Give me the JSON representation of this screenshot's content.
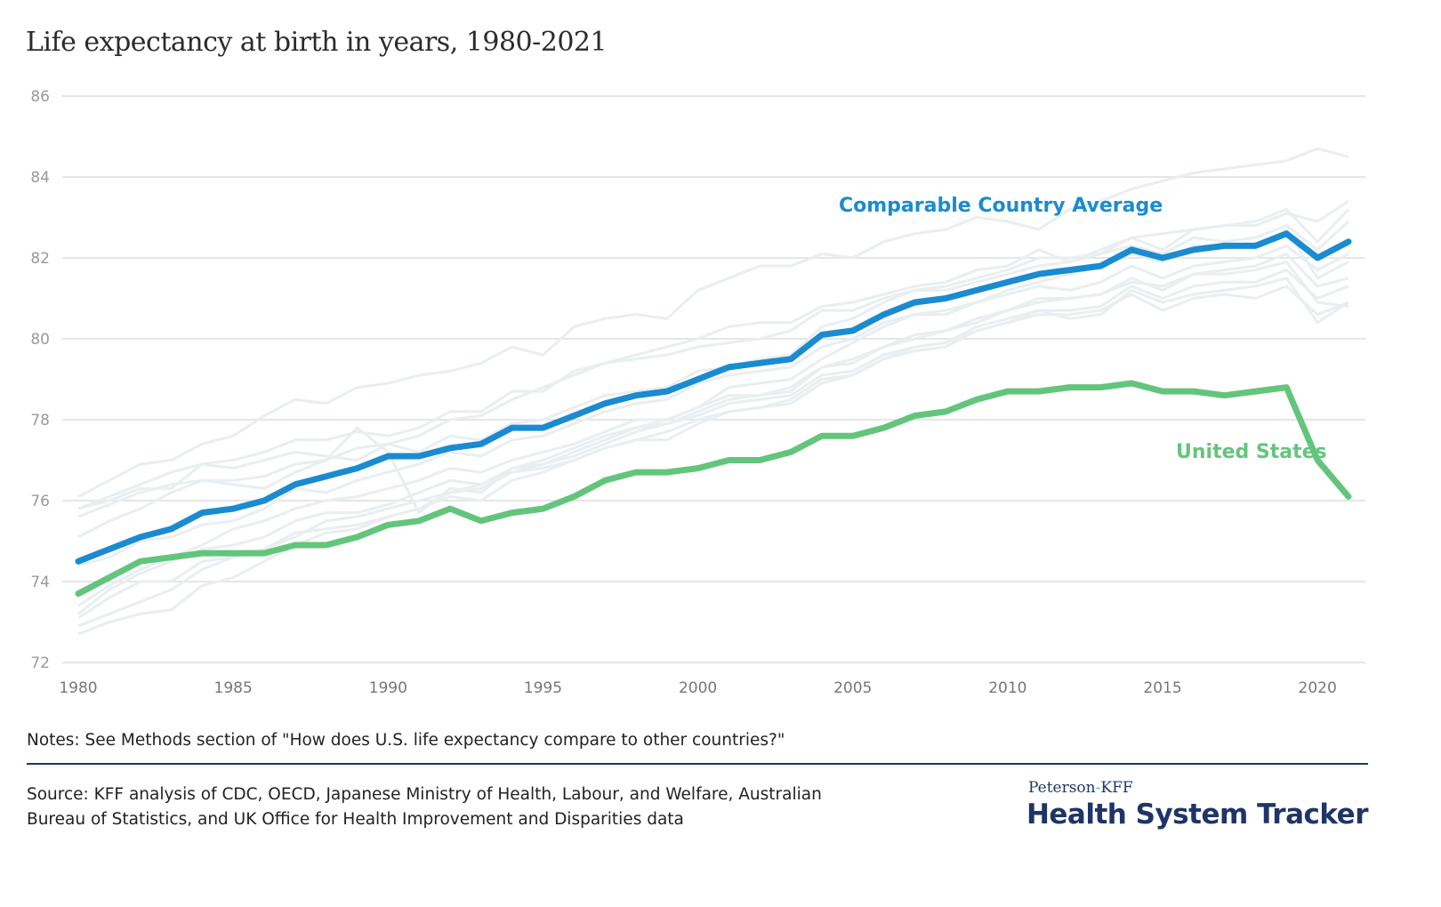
{
  "title": "Life expectancy at birth in years, 1980-2021",
  "notes": "Notes: See Methods section of \"How does U.S. life expectancy compare to other countries?\"",
  "source_line1": "Source: KFF analysis of CDC, OECD, Japanese Ministry of Health, Labour, and Welfare, Australian",
  "source_line2": "Bureau of Statistics, and UK Office for Health Improvement and Disparities data",
  "brand": {
    "top_left": "Peterson",
    "top_dash": "-",
    "top_right": "KFF",
    "main": "Health System Tracker"
  },
  "colors": {
    "comparable": "#1a8bd0",
    "us": "#63c57c",
    "background_lines": "#e9eef1",
    "grid": "#e6e6e6",
    "brand": "#1f3566"
  },
  "chart_data": {
    "type": "line",
    "title": "Life expectancy at birth in years, 1980-2021",
    "xlabel": "",
    "ylabel": "",
    "xlim": [
      1980,
      2021
    ],
    "ylim": [
      72,
      86
    ],
    "grid": true,
    "x_ticks": [
      1980,
      1985,
      1990,
      1995,
      2000,
      2005,
      2010,
      2015,
      2020
    ],
    "y_ticks": [
      72,
      74,
      76,
      78,
      80,
      82,
      84,
      86
    ],
    "x": [
      1980,
      1981,
      1982,
      1983,
      1984,
      1985,
      1986,
      1987,
      1988,
      1989,
      1990,
      1991,
      1992,
      1993,
      1994,
      1995,
      1996,
      1997,
      1998,
      1999,
      2000,
      2001,
      2002,
      2003,
      2004,
      2005,
      2006,
      2007,
      2008,
      2009,
      2010,
      2011,
      2012,
      2013,
      2014,
      2015,
      2016,
      2017,
      2018,
      2019,
      2020,
      2021
    ],
    "series": [
      {
        "name": "Comparable Country Average",
        "label": "Comparable Country Average",
        "values": [
          74.5,
          74.8,
          75.1,
          75.3,
          75.7,
          75.8,
          76.0,
          76.4,
          76.6,
          76.8,
          77.1,
          77.1,
          77.3,
          77.4,
          77.8,
          77.8,
          78.1,
          78.4,
          78.6,
          78.7,
          79.0,
          79.3,
          79.4,
          79.5,
          80.1,
          80.2,
          80.6,
          80.9,
          81.0,
          81.2,
          81.4,
          81.6,
          81.7,
          81.8,
          82.2,
          82.0,
          82.2,
          82.3,
          82.3,
          82.6,
          82.0,
          82.4
        ]
      },
      {
        "name": "United States",
        "label": "United States",
        "values": [
          73.7,
          74.1,
          74.5,
          74.6,
          74.7,
          74.7,
          74.7,
          74.9,
          74.9,
          75.1,
          75.4,
          75.5,
          75.8,
          75.5,
          75.7,
          75.8,
          76.1,
          76.5,
          76.7,
          76.7,
          76.8,
          77.0,
          77.0,
          77.2,
          77.6,
          77.6,
          77.8,
          78.1,
          78.2,
          78.5,
          78.7,
          78.7,
          78.8,
          78.8,
          78.9,
          78.7,
          78.7,
          78.6,
          78.7,
          78.8,
          77.0,
          76.1
        ]
      }
    ],
    "background_series": [
      {
        "name": "country-1",
        "values": [
          76.1,
          76.5,
          76.9,
          77.0,
          77.4,
          77.6,
          78.1,
          78.5,
          78.4,
          78.8,
          78.9,
          79.1,
          79.2,
          79.4,
          79.8,
          79.6,
          80.3,
          80.5,
          80.6,
          80.5,
          81.2,
          81.5,
          81.8,
          81.8,
          82.1,
          82.0,
          82.4,
          82.6,
          82.7,
          83.0,
          82.9,
          82.7,
          83.2,
          83.4,
          83.7,
          83.9,
          84.1,
          84.2,
          84.3,
          84.4,
          84.7,
          84.5
        ]
      },
      {
        "name": "country-2",
        "values": [
          75.8,
          76.1,
          76.4,
          76.7,
          76.9,
          77.0,
          77.2,
          77.5,
          77.5,
          77.7,
          77.6,
          77.8,
          78.2,
          78.2,
          78.7,
          78.7,
          79.2,
          79.4,
          79.5,
          79.6,
          79.8,
          79.9,
          80.0,
          80.2,
          80.7,
          80.7,
          81.0,
          81.2,
          81.2,
          81.4,
          81.6,
          81.8,
          81.9,
          82.1,
          82.3,
          82.1,
          82.5,
          82.4,
          82.5,
          82.8,
          82.2,
          82.9
        ]
      },
      {
        "name": "country-3",
        "values": [
          75.8,
          76.0,
          76.3,
          76.3,
          76.9,
          76.8,
          77.0,
          77.2,
          77.1,
          77.0,
          77.4,
          77.6,
          78.0,
          78.1,
          78.5,
          78.8,
          79.1,
          79.4,
          79.6,
          79.8,
          80.0,
          80.3,
          80.4,
          80.4,
          80.8,
          80.9,
          81.1,
          81.3,
          81.4,
          81.7,
          81.8,
          82.2,
          81.9,
          82.2,
          82.5,
          82.2,
          82.7,
          82.8,
          82.9,
          83.2,
          82.4,
          83.2
        ]
      },
      {
        "name": "country-4",
        "values": [
          75.6,
          75.9,
          76.2,
          76.4,
          76.5,
          76.5,
          76.6,
          76.9,
          77.0,
          77.3,
          77.4,
          77.2,
          77.6,
          77.5,
          77.9,
          78.0,
          78.3,
          78.6,
          78.7,
          78.8,
          79.2,
          79.3,
          79.5,
          79.6,
          80.3,
          80.5,
          80.9,
          81.2,
          81.3,
          81.5,
          81.7,
          82.0,
          82.0,
          82.1,
          82.5,
          82.6,
          82.7,
          82.8,
          82.8,
          83.1,
          82.9,
          83.4
        ]
      },
      {
        "name": "country-5",
        "values": [
          75.1,
          75.5,
          75.8,
          76.2,
          76.5,
          76.4,
          76.3,
          76.7,
          77.0,
          77.8,
          77.2,
          75.7,
          76.3,
          76.2,
          76.8,
          77.0,
          77.3,
          77.6,
          77.8,
          78.0,
          78.3,
          78.8,
          78.9,
          79.0,
          79.5,
          79.9,
          80.3,
          80.6,
          80.6,
          80.9,
          81.2,
          81.4,
          81.6,
          81.8,
          82.1,
          81.9,
          82.3,
          82.3,
          82.3,
          82.7,
          81.5,
          81.9
        ]
      },
      {
        "name": "country-6",
        "values": [
          74.4,
          74.6,
          75.0,
          75.1,
          75.4,
          75.5,
          75.8,
          76.3,
          76.2,
          76.5,
          76.7,
          76.9,
          77.2,
          77.1,
          77.5,
          77.6,
          77.9,
          78.2,
          78.4,
          78.5,
          78.9,
          79.1,
          79.2,
          79.3,
          79.8,
          80.0,
          80.4,
          80.6,
          80.7,
          80.9,
          81.1,
          81.3,
          81.2,
          81.4,
          81.8,
          81.5,
          81.8,
          81.9,
          82.0,
          82.3,
          81.7,
          82.1
        ]
      },
      {
        "name": "country-7",
        "values": [
          73.4,
          73.9,
          74.3,
          74.6,
          74.9,
          75.3,
          75.5,
          75.8,
          76.0,
          76.1,
          76.3,
          76.5,
          76.8,
          76.7,
          77.0,
          77.2,
          77.4,
          77.7,
          78.0,
          78.0,
          78.3,
          78.6,
          78.6,
          78.7,
          79.3,
          79.4,
          79.8,
          80.0,
          80.2,
          80.5,
          80.7,
          81.0,
          81.0,
          81.1,
          81.5,
          81.2,
          81.6,
          81.7,
          81.8,
          82.1,
          81.3,
          81.5
        ]
      },
      {
        "name": "country-8",
        "values": [
          73.2,
          73.8,
          74.2,
          74.5,
          74.8,
          74.9,
          75.1,
          75.5,
          75.7,
          75.7,
          75.9,
          76.2,
          76.5,
          76.4,
          76.8,
          76.9,
          77.1,
          77.4,
          77.7,
          77.9,
          78.1,
          78.4,
          78.5,
          78.6,
          79.1,
          79.2,
          79.6,
          79.8,
          79.9,
          80.3,
          80.5,
          80.7,
          80.7,
          80.8,
          81.3,
          81.0,
          81.3,
          81.4,
          81.4,
          81.7,
          81.0,
          81.3
        ]
      },
      {
        "name": "country-9",
        "values": [
          73.1,
          73.6,
          74.0,
          74.0,
          74.5,
          74.6,
          74.8,
          75.2,
          75.3,
          75.4,
          75.6,
          75.8,
          76.1,
          76.0,
          76.5,
          76.7,
          77.0,
          77.3,
          77.5,
          77.5,
          77.9,
          78.2,
          78.3,
          78.4,
          78.9,
          79.1,
          79.5,
          79.7,
          79.8,
          80.2,
          80.4,
          80.7,
          80.5,
          80.6,
          81.2,
          80.9,
          81.1,
          81.2,
          81.3,
          81.5,
          80.4,
          80.9
        ]
      },
      {
        "name": "country-10",
        "values": [
          72.9,
          73.2,
          73.5,
          73.8,
          74.3,
          74.6,
          74.8,
          75.1,
          75.5,
          75.6,
          75.8,
          76.0,
          76.2,
          76.4,
          76.7,
          76.8,
          77.0,
          77.3,
          77.5,
          77.7,
          78.0,
          78.2,
          78.3,
          78.5,
          79.0,
          79.1,
          79.5,
          79.8,
          79.9,
          80.2,
          80.4,
          80.6,
          80.6,
          80.7,
          81.1,
          80.7,
          81.0,
          81.1,
          81.0,
          81.3,
          80.6,
          80.9
        ]
      },
      {
        "name": "country-11",
        "values": [
          72.7,
          73.0,
          73.2,
          73.3,
          73.9,
          74.1,
          74.5,
          74.9,
          75.2,
          75.3,
          75.6,
          75.8,
          76.2,
          76.3,
          76.7,
          76.9,
          77.2,
          77.5,
          77.8,
          77.9,
          78.2,
          78.5,
          78.6,
          78.8,
          79.3,
          79.5,
          79.8,
          80.1,
          80.2,
          80.4,
          80.7,
          80.9,
          81.0,
          81.1,
          81.4,
          81.3,
          81.6,
          81.6,
          81.7,
          81.9,
          80.9,
          80.8
        ]
      }
    ]
  }
}
